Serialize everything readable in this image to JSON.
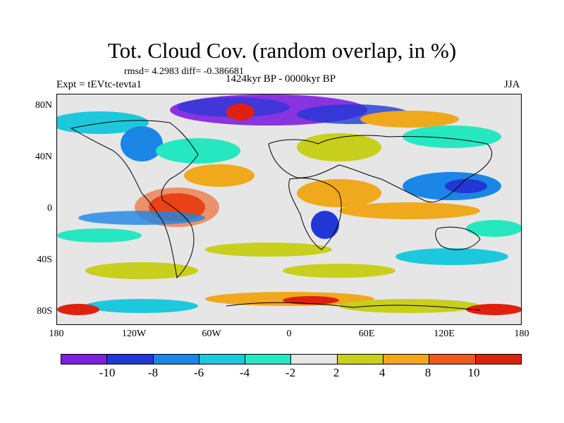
{
  "header": {
    "title": "Tot. Cloud Cov. (random overlap, in %)",
    "stats": "rmsd= 4.2983 diff= -0.386681",
    "expt": "Expt = tEVtc-tevta1",
    "period": "1424kyr BP - 0000kyr BP",
    "season": "JJA"
  },
  "axes": {
    "y_labels": [
      "80N",
      "40N",
      "0",
      "40S",
      "80S"
    ],
    "x_labels": [
      "180",
      "120W",
      "60W",
      "0",
      "60E",
      "120E",
      "180"
    ]
  },
  "colorbar": {
    "labels": [
      "-10",
      "-8",
      "-6",
      "-4",
      "-2",
      "2",
      "4",
      "8",
      "10"
    ],
    "colors": [
      "#7f1fe0",
      "#2238d6",
      "#1b86e6",
      "#1ec8dc",
      "#26e8c0",
      "#e6e6e6",
      "#c8cf1c",
      "#f0a81c",
      "#ee5a1a",
      "#e0200f"
    ]
  },
  "map": {
    "background": "#e6e6e6",
    "land_outline": "#000000"
  }
}
